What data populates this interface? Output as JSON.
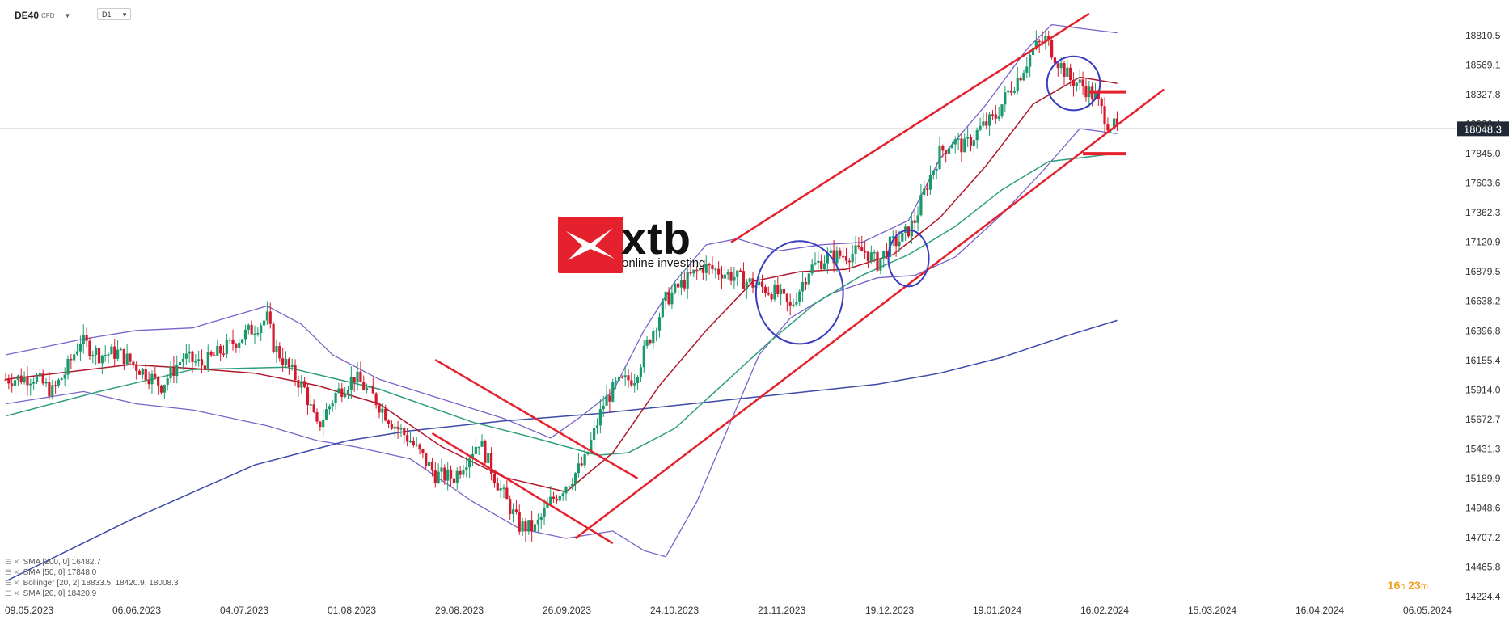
{
  "header": {
    "symbol": "DE40",
    "symbol_tag": "CFD",
    "timeframe": "D1"
  },
  "logo": {
    "text": "xtb",
    "tagline": "online investing"
  },
  "timer": {
    "hours": "16",
    "h_unit": "h",
    "minutes": "23",
    "m_unit": "m"
  },
  "legend": [
    {
      "text": "SMA  [200,  0]  16482.7"
    },
    {
      "text": "SMA  [50,  0]  17848.0"
    },
    {
      "text": "Bollinger  [20,  2]  18833.5,  18420.9,  18008.3"
    },
    {
      "text": "SMA  [20,  0]  18420.9"
    }
  ],
  "colors": {
    "bull": "#1a9a6c",
    "bear": "#d6182b",
    "channel": "#e5212d",
    "sma20": "#b0182a",
    "sma50": "#2e9e7e",
    "sma200": "#3d4aa8",
    "bollinger": "#7b61c9",
    "circle": "#3a3cc0",
    "price_tag": "#1f2a36"
  },
  "chart_data": {
    "type": "candlestick",
    "title": "",
    "ylim": [
      14224.4,
      19052
    ],
    "y_ticks": [
      "18810.5",
      "18569.1",
      "18327.8",
      "18086.4",
      "17845.0",
      "17603.6",
      "17362.3",
      "17120.9",
      "16879.5",
      "16638.2",
      "16396.8",
      "16155.4",
      "15914.0",
      "15672.7",
      "15431.3",
      "15189.9",
      "14948.6",
      "14707.2",
      "14465.8",
      "14224.4"
    ],
    "x_ticks": [
      "09.05.2023",
      "06.06.2023",
      "04.07.2023",
      "01.08.2023",
      "29.08.2023",
      "26.09.2023",
      "24.10.2023",
      "21.11.2023",
      "19.12.2023",
      "19.01.2024",
      "16.02.2024",
      "15.03.2024",
      "16.04.2024",
      "06.05.2024"
    ],
    "current_price": "18048.3",
    "price_path": [
      [
        0,
        16000
      ],
      [
        9,
        16020
      ],
      [
        15,
        15900
      ],
      [
        19,
        16050
      ],
      [
        24,
        16320
      ],
      [
        30,
        16200
      ],
      [
        36,
        16220
      ],
      [
        45,
        16050
      ],
      [
        50,
        15950
      ],
      [
        57,
        16180
      ],
      [
        63,
        16120
      ],
      [
        72,
        16280
      ],
      [
        84,
        16500
      ],
      [
        86,
        16280
      ],
      [
        92,
        16050
      ],
      [
        96,
        15920
      ],
      [
        100,
        15600
      ],
      [
        106,
        15880
      ],
      [
        112,
        16020
      ],
      [
        118,
        15860
      ],
      [
        124,
        15650
      ],
      [
        130,
        15500
      ],
      [
        138,
        15220
      ],
      [
        144,
        15200
      ],
      [
        152,
        15500
      ],
      [
        158,
        15150
      ],
      [
        165,
        14800
      ],
      [
        170,
        14780
      ],
      [
        175,
        15000
      ],
      [
        182,
        15200
      ],
      [
        186,
        15330
      ],
      [
        192,
        15800
      ],
      [
        196,
        15950
      ],
      [
        202,
        16020
      ],
      [
        207,
        16350
      ],
      [
        212,
        16650
      ],
      [
        218,
        16800
      ],
      [
        224,
        16920
      ],
      [
        230,
        16880
      ],
      [
        236,
        16820
      ],
      [
        243,
        16750
      ],
      [
        248,
        16700
      ],
      [
        252,
        16580
      ],
      [
        258,
        16900
      ],
      [
        264,
        17000
      ],
      [
        270,
        17020
      ],
      [
        276,
        17050
      ],
      [
        280,
        16950
      ],
      [
        284,
        17100
      ],
      [
        288,
        17150
      ],
      [
        292,
        17300
      ],
      [
        296,
        17600
      ],
      [
        300,
        17850
      ],
      [
        304,
        17950
      ],
      [
        308,
        17900
      ],
      [
        313,
        18050
      ],
      [
        318,
        18150
      ],
      [
        322,
        18350
      ],
      [
        326,
        18500
      ],
      [
        330,
        18700
      ],
      [
        334,
        18780
      ],
      [
        338,
        18600
      ],
      [
        342,
        18450
      ],
      [
        346,
        18400
      ],
      [
        350,
        18300
      ],
      [
        354,
        18100
      ],
      [
        357,
        18048
      ]
    ],
    "sma20": [
      [
        0,
        16000
      ],
      [
        20,
        16060
      ],
      [
        40,
        16120
      ],
      [
        60,
        16090
      ],
      [
        80,
        16050
      ],
      [
        100,
        15950
      ],
      [
        120,
        15800
      ],
      [
        140,
        15450
      ],
      [
        160,
        15200
      ],
      [
        180,
        15080
      ],
      [
        195,
        15400
      ],
      [
        210,
        15950
      ],
      [
        225,
        16400
      ],
      [
        240,
        16800
      ],
      [
        255,
        16880
      ],
      [
        270,
        16900
      ],
      [
        285,
        17020
      ],
      [
        300,
        17320
      ],
      [
        315,
        17750
      ],
      [
        330,
        18250
      ],
      [
        345,
        18470
      ],
      [
        357,
        18420
      ]
    ],
    "sma50": [
      [
        0,
        15700
      ],
      [
        30,
        15900
      ],
      [
        60,
        16080
      ],
      [
        90,
        16100
      ],
      [
        120,
        15920
      ],
      [
        150,
        15650
      ],
      [
        170,
        15520
      ],
      [
        190,
        15380
      ],
      [
        200,
        15400
      ],
      [
        215,
        15600
      ],
      [
        230,
        15950
      ],
      [
        245,
        16300
      ],
      [
        260,
        16620
      ],
      [
        275,
        16850
      ],
      [
        290,
        17020
      ],
      [
        305,
        17250
      ],
      [
        320,
        17550
      ],
      [
        335,
        17780
      ],
      [
        357,
        17848
      ]
    ],
    "sma200": [
      [
        0,
        14350
      ],
      [
        40,
        14850
      ],
      [
        80,
        15300
      ],
      [
        110,
        15500
      ],
      [
        130,
        15580
      ],
      [
        160,
        15660
      ],
      [
        190,
        15720
      ],
      [
        220,
        15800
      ],
      [
        250,
        15880
      ],
      [
        280,
        15960
      ],
      [
        300,
        16050
      ],
      [
        320,
        16180
      ],
      [
        340,
        16350
      ],
      [
        357,
        16482
      ]
    ],
    "boll_upper": [
      [
        0,
        16200
      ],
      [
        25,
        16330
      ],
      [
        42,
        16400
      ],
      [
        60,
        16420
      ],
      [
        84,
        16600
      ],
      [
        95,
        16450
      ],
      [
        105,
        16200
      ],
      [
        120,
        16000
      ],
      [
        145,
        15800
      ],
      [
        160,
        15680
      ],
      [
        175,
        15520
      ],
      [
        185,
        15700
      ],
      [
        195,
        15900
      ],
      [
        205,
        16400
      ],
      [
        215,
        16800
      ],
      [
        225,
        17100
      ],
      [
        235,
        17150
      ],
      [
        248,
        17050
      ],
      [
        262,
        17100
      ],
      [
        275,
        17120
      ],
      [
        290,
        17300
      ],
      [
        300,
        17800
      ],
      [
        315,
        18250
      ],
      [
        328,
        18700
      ],
      [
        336,
        18900
      ],
      [
        345,
        18870
      ],
      [
        357,
        18833
      ]
    ],
    "boll_lower": [
      [
        0,
        15800
      ],
      [
        25,
        15900
      ],
      [
        42,
        15800
      ],
      [
        60,
        15750
      ],
      [
        84,
        15620
      ],
      [
        100,
        15500
      ],
      [
        112,
        15450
      ],
      [
        130,
        15350
      ],
      [
        150,
        15000
      ],
      [
        165,
        14780
      ],
      [
        180,
        14700
      ],
      [
        195,
        14760
      ],
      [
        205,
        14600
      ],
      [
        212,
        14550
      ],
      [
        222,
        15000
      ],
      [
        232,
        15600
      ],
      [
        242,
        16200
      ],
      [
        252,
        16500
      ],
      [
        265,
        16700
      ],
      [
        280,
        16830
      ],
      [
        292,
        16850
      ],
      [
        305,
        17000
      ],
      [
        320,
        17350
      ],
      [
        333,
        17700
      ],
      [
        345,
        18050
      ],
      [
        357,
        18008
      ]
    ],
    "channels": [
      {
        "points": [
          [
            138,
            16160
          ],
          [
            203,
            15190
          ]
        ]
      },
      {
        "points": [
          [
            137,
            15560
          ],
          [
            195,
            14660
          ]
        ]
      },
      {
        "points": [
          [
            183,
            14700
          ],
          [
            372,
            18370
          ]
        ]
      },
      {
        "points": [
          [
            233,
            17120
          ],
          [
            348,
            18990
          ]
        ]
      }
    ],
    "circles": [
      {
        "x": 255,
        "y": 16710,
        "rx": 14,
        "ry": 420
      },
      {
        "x": 290,
        "y": 16990,
        "rx": 6.5,
        "ry": 230
      },
      {
        "x": 343,
        "y": 18420,
        "rx": 8.5,
        "ry": 220
      }
    ],
    "levels": [
      {
        "y": 18350,
        "x1": 348,
        "x2": 360
      },
      {
        "y": 17845,
        "x1": 346,
        "x2": 360
      }
    ]
  }
}
